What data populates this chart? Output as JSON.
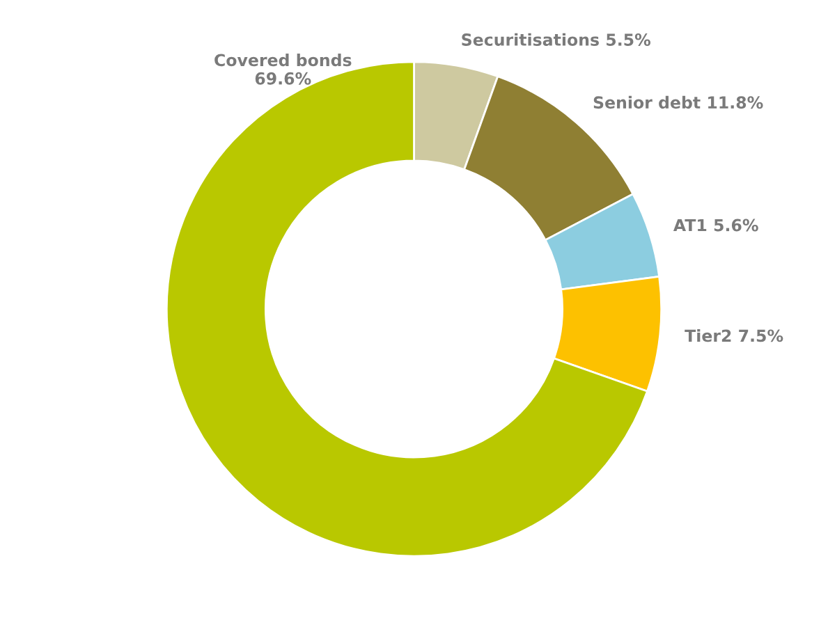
{
  "chart_data": {
    "type": "donut",
    "categories": [
      "Securitisations",
      "Senior debt",
      "AT1",
      "Tier2",
      "Covered bonds"
    ],
    "values": [
      5.5,
      11.8,
      5.6,
      7.5,
      69.6
    ],
    "value_labels": [
      "5.5%",
      "11.8%",
      "5.6%",
      "7.5%",
      "69.6%"
    ],
    "colors": [
      "#cec9a0",
      "#8f7f33",
      "#8ccde0",
      "#fdc100",
      "#b9c800"
    ],
    "legend": false
  }
}
